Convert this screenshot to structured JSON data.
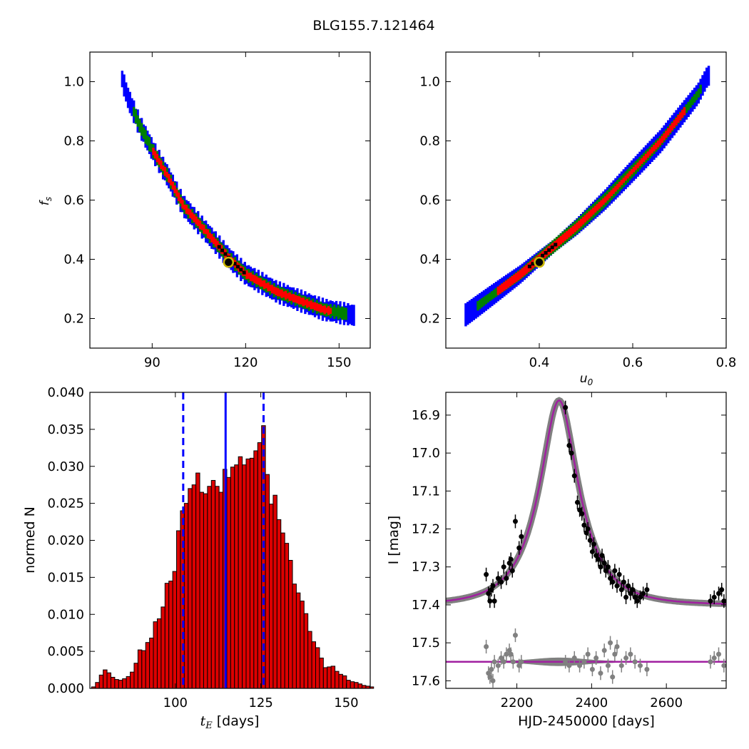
{
  "suptitle": "BLG155.7.121464",
  "colors": {
    "blue": "#0000ff",
    "green": "#008000",
    "red": "#ff0000",
    "black": "#000000",
    "gray": "#808080",
    "magenta": "#a020a0",
    "hist_red": "#dd0000",
    "marker_yellow": "#c8b400"
  },
  "chart_data": [
    {
      "type": "heatmap",
      "panel": "top-left",
      "xlabel": "",
      "ylabel": "f_s",
      "xlim": [
        70,
        160
      ],
      "ylim": [
        0.1,
        1.1
      ],
      "xticks": [
        90,
        120,
        150
      ],
      "yticks": [
        0.2,
        0.4,
        0.6,
        0.8,
        1.0
      ],
      "region_centerline": {
        "x": [
          80,
          82,
          86,
          90,
          95,
          100,
          105,
          110,
          115,
          120,
          125,
          130,
          135,
          140,
          145,
          150,
          155
        ],
        "y": [
          1.02,
          0.95,
          0.85,
          0.77,
          0.68,
          0.58,
          0.52,
          0.46,
          0.4,
          0.35,
          0.32,
          0.29,
          0.27,
          0.25,
          0.23,
          0.22,
          0.21
        ]
      },
      "levels": [
        "blue",
        "green",
        "red",
        "black"
      ],
      "best_fit": {
        "x": 114.5,
        "y": 0.39
      }
    },
    {
      "type": "heatmap",
      "panel": "top-right",
      "xlabel": "u_0",
      "ylabel": "",
      "xlim": [
        0.2,
        0.8
      ],
      "ylim": [
        0.1,
        1.1
      ],
      "xticks": [
        0.4,
        0.6,
        0.8
      ],
      "yticks": [
        0.2,
        0.4,
        0.6,
        0.8,
        1.0
      ],
      "region_centerline": {
        "x": [
          0.24,
          0.3,
          0.36,
          0.42,
          0.48,
          0.54,
          0.6,
          0.66,
          0.7,
          0.74,
          0.76
        ],
        "y": [
          0.21,
          0.28,
          0.35,
          0.43,
          0.51,
          0.6,
          0.7,
          0.8,
          0.88,
          0.96,
          1.02
        ]
      },
      "levels": [
        "blue",
        "green",
        "red",
        "black"
      ],
      "best_fit": {
        "x": 0.4,
        "y": 0.39
      }
    },
    {
      "type": "bar",
      "panel": "bottom-left",
      "xlabel": "t_E [days]",
      "ylabel": "normed N",
      "xlim": [
        75,
        157
      ],
      "ylim": [
        0,
        0.04
      ],
      "xticks": [
        100,
        125,
        150
      ],
      "yticks": [
        0.0,
        0.005,
        0.01,
        0.015,
        0.02,
        0.025,
        0.03,
        0.035,
        0.04
      ],
      "ytick_labels": [
        "0.000",
        "0.005",
        "0.010",
        "0.015",
        "0.020",
        "0.025",
        "0.030",
        "0.035",
        "0.040"
      ],
      "bin_start": 75.5,
      "bin_width": 1.13,
      "values": [
        0.0002,
        0.0008,
        0.0018,
        0.0025,
        0.0021,
        0.0015,
        0.0012,
        0.0011,
        0.0013,
        0.0016,
        0.0022,
        0.0034,
        0.0052,
        0.0051,
        0.0062,
        0.0068,
        0.009,
        0.0094,
        0.011,
        0.0142,
        0.0145,
        0.0158,
        0.0213,
        0.024,
        0.025,
        0.027,
        0.0275,
        0.0291,
        0.0265,
        0.0263,
        0.0273,
        0.0281,
        0.0273,
        0.0265,
        0.0296,
        0.0285,
        0.0299,
        0.0302,
        0.0313,
        0.0302,
        0.031,
        0.0311,
        0.0321,
        0.0332,
        0.0355,
        0.0289,
        0.0249,
        0.0261,
        0.0228,
        0.021,
        0.0196,
        0.0173,
        0.0141,
        0.0129,
        0.0118,
        0.0101,
        0.0077,
        0.0063,
        0.0055,
        0.0041,
        0.0028,
        0.0029,
        0.003,
        0.0023,
        0.0019,
        0.0017,
        0.0011,
        0.0009,
        0.0008,
        0.0006,
        0.0004,
        0.0003,
        0.0002
      ],
      "vlines": [
        {
          "x": 102.3,
          "style": "dashed"
        },
        {
          "x": 114.7,
          "style": "solid"
        },
        {
          "x": 125.8,
          "style": "dashed"
        }
      ]
    },
    {
      "type": "scatter",
      "panel": "bottom-right",
      "xlabel": "HJD-2450000 [days]",
      "ylabel": "I [mag]",
      "xlim": [
        2010,
        2760
      ],
      "ylim": [
        17.62,
        16.84
      ],
      "y_inverted": true,
      "xticks": [
        2200,
        2400,
        2600
      ],
      "yticks": [
        16.9,
        17.0,
        17.1,
        17.2,
        17.3,
        17.4,
        17.5,
        17.6
      ],
      "model": {
        "t0": 2313,
        "tE": 114.5,
        "u0": 0.4,
        "fs": 0.39,
        "I_base": 17.4
      },
      "residual_baseline": 17.55,
      "data": {
        "x": [
          2118,
          2124,
          2128,
          2132,
          2136,
          2140,
          2150,
          2158,
          2165,
          2172,
          2180,
          2184,
          2188,
          2196,
          2206,
          2212,
          2330,
          2340,
          2346,
          2354,
          2362,
          2368,
          2374,
          2380,
          2386,
          2390,
          2396,
          2402,
          2406,
          2412,
          2418,
          2424,
          2428,
          2434,
          2438,
          2444,
          2450,
          2456,
          2462,
          2468,
          2474,
          2480,
          2486,
          2492,
          2498,
          2504,
          2510,
          2516,
          2522,
          2530,
          2538,
          2548,
          2718,
          2728,
          2740,
          2748,
          2754
        ],
        "y": [
          17.32,
          17.37,
          17.39,
          17.36,
          17.35,
          17.39,
          17.33,
          17.34,
          17.3,
          17.33,
          17.29,
          17.28,
          17.31,
          17.18,
          17.25,
          17.22,
          16.88,
          16.98,
          17.0,
          17.06,
          17.13,
          17.15,
          17.16,
          17.19,
          17.21,
          17.2,
          17.23,
          17.26,
          17.24,
          17.27,
          17.28,
          17.3,
          17.27,
          17.29,
          17.31,
          17.3,
          17.33,
          17.34,
          17.31,
          17.35,
          17.32,
          17.36,
          17.34,
          17.38,
          17.35,
          17.37,
          17.36,
          17.38,
          17.39,
          17.38,
          17.37,
          17.36,
          17.39,
          17.38,
          17.37,
          17.36,
          17.39
        ]
      },
      "residuals": {
        "x": [
          2118,
          2124,
          2128,
          2132,
          2136,
          2140,
          2150,
          2158,
          2165,
          2172,
          2180,
          2184,
          2190,
          2196,
          2206,
          2212,
          2330,
          2340,
          2354,
          2368,
          2380,
          2390,
          2402,
          2412,
          2424,
          2434,
          2444,
          2450,
          2456,
          2462,
          2468,
          2480,
          2492,
          2504,
          2516,
          2530,
          2548,
          2718,
          2728,
          2740,
          2754
        ],
        "y": [
          17.51,
          17.58,
          17.59,
          17.57,
          17.6,
          17.55,
          17.56,
          17.54,
          17.55,
          17.53,
          17.52,
          17.53,
          17.55,
          17.48,
          17.56,
          17.55,
          17.55,
          17.56,
          17.54,
          17.56,
          17.55,
          17.53,
          17.57,
          17.54,
          17.58,
          17.52,
          17.56,
          17.5,
          17.59,
          17.53,
          17.51,
          17.56,
          17.54,
          17.53,
          17.55,
          17.56,
          17.57,
          17.55,
          17.54,
          17.53,
          17.56
        ]
      }
    }
  ]
}
